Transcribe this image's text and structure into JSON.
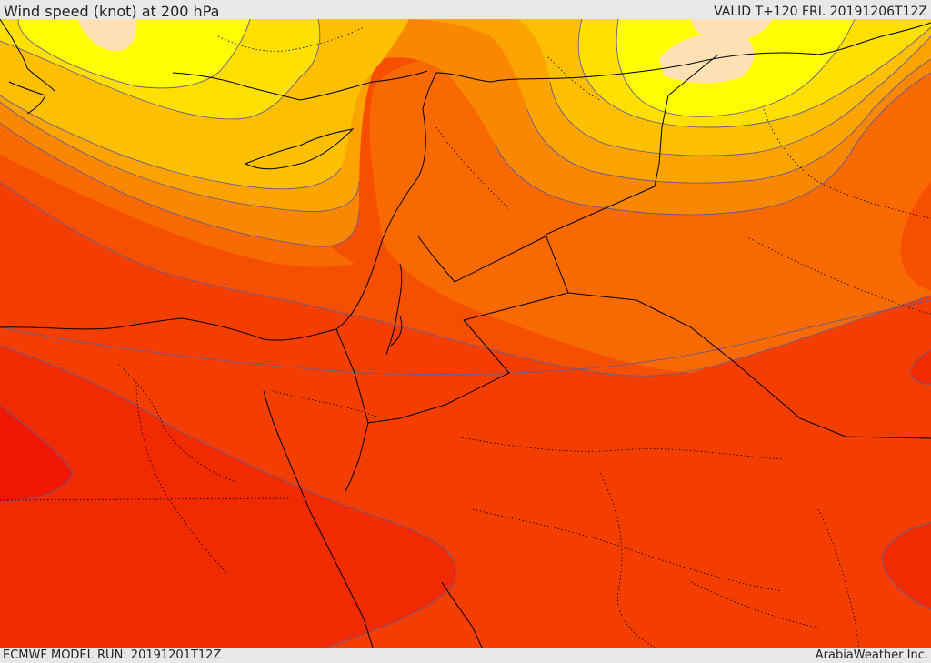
{
  "header": {
    "title": "Wind speed (knot) at 200 hPa",
    "valid": "VALID T+120 FRI. 20191206T12Z"
  },
  "footer": {
    "model_run": "ECMWF MODEL RUN: 20191201T12Z",
    "credit": "ArabiaWeather Inc."
  },
  "colors": {
    "band_1": "#fde0b4",
    "band_2": "#fffd00",
    "band_3": "#fde000",
    "band_4": "#fcc000",
    "band_5": "#fba400",
    "band_6": "#f98800",
    "band_7": "#f86a00",
    "band_8": "#f64f00",
    "band_9": "#f43e00",
    "band_10": "#f22a00",
    "band_11": "#f01600",
    "contour": "#6b5a8c",
    "coast": "#000000"
  }
}
